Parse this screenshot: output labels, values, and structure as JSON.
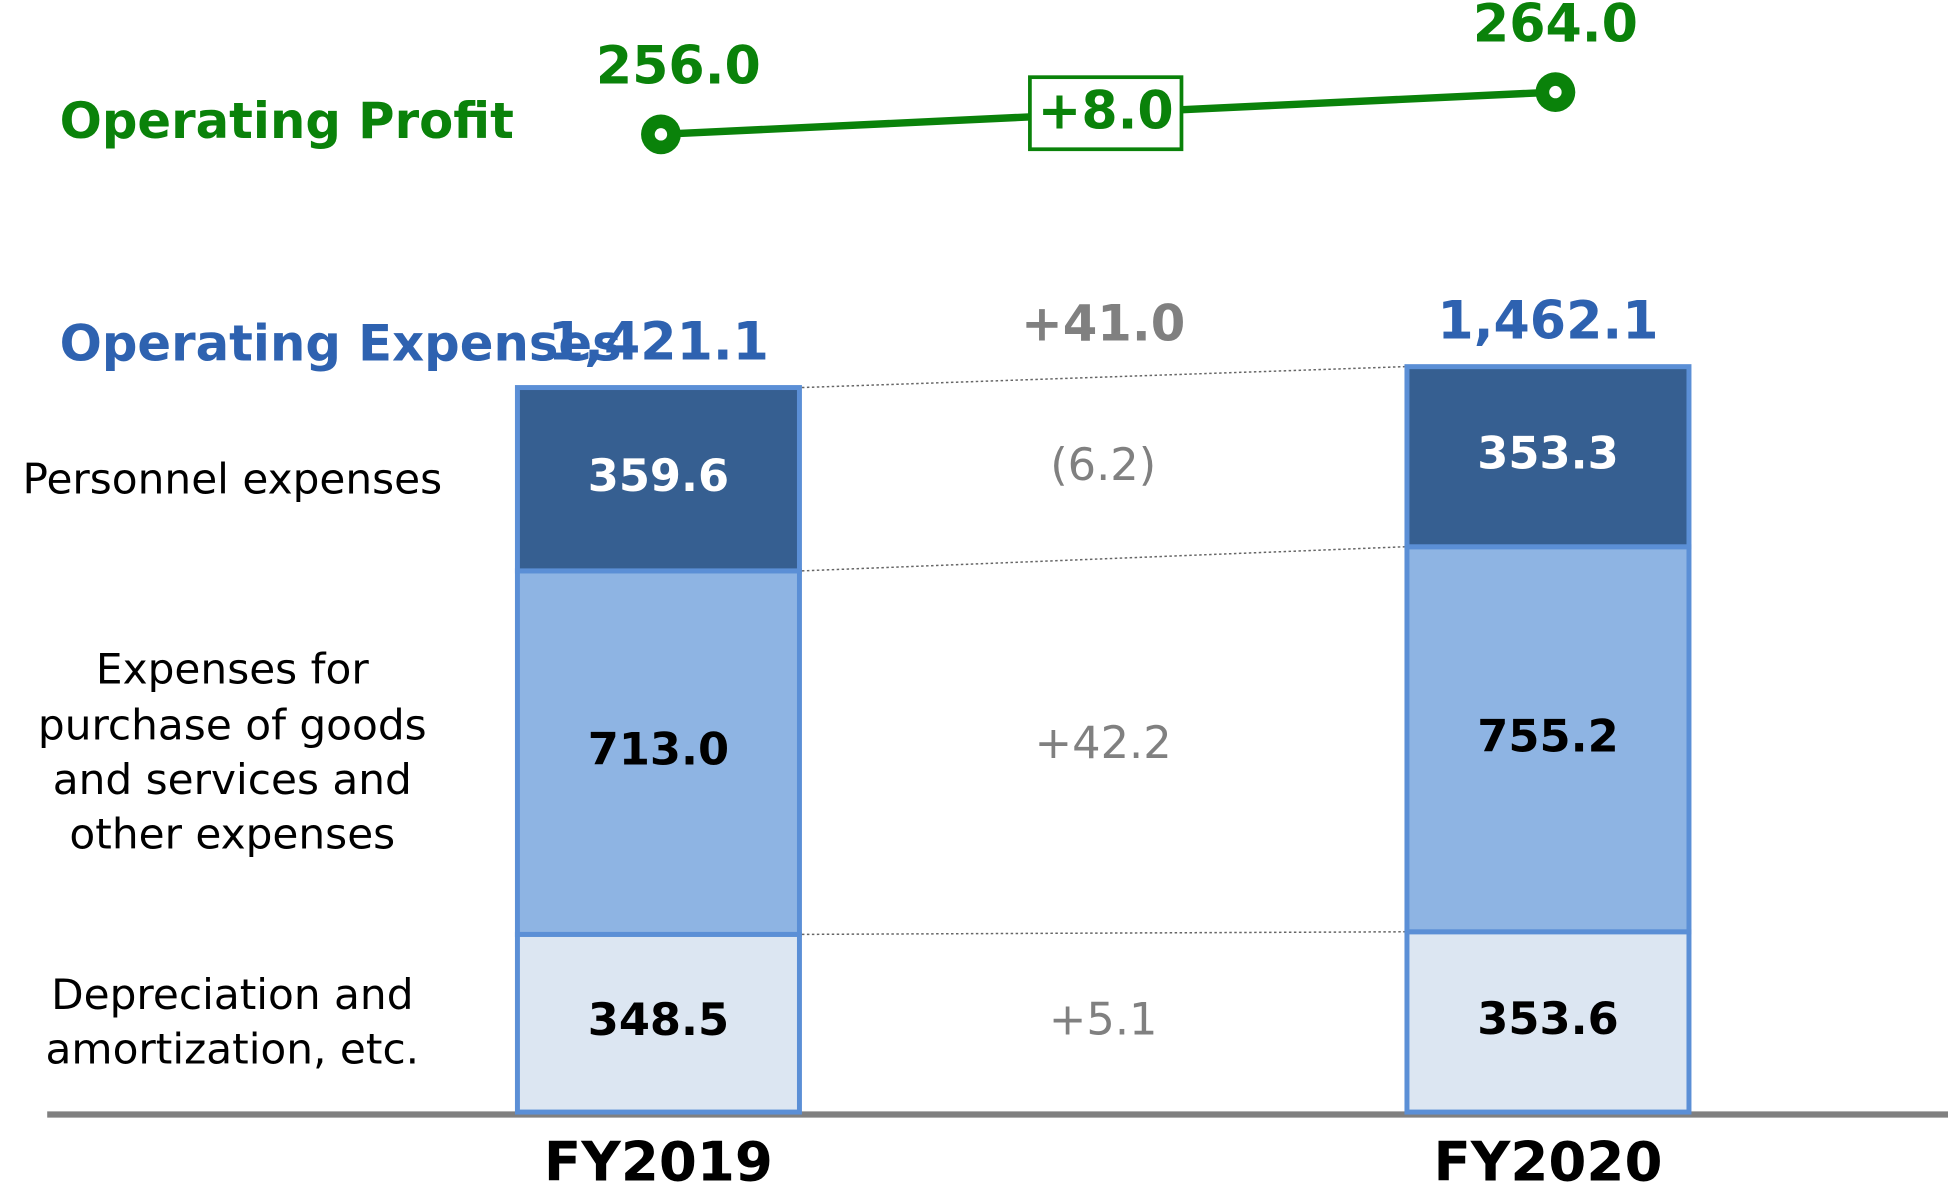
{
  "chart_data": {
    "type": "stacked_bar",
    "categories": [
      "FY2019",
      "FY2020"
    ],
    "series": [
      {
        "name": "Depreciation and amortization, etc.",
        "color": "#dce6f2",
        "text_color": "#000000",
        "values": [
          348.5,
          353.6
        ],
        "value_labels": [
          "348.5",
          "353.6"
        ],
        "change": 5.1,
        "change_label": "+5.1"
      },
      {
        "name": "Expenses for purchase of goods and services and other expenses",
        "color": "#8eb4e3",
        "text_color": "#000000",
        "values": [
          713.0,
          755.2
        ],
        "value_labels": [
          "713.0",
          "755.2"
        ],
        "change": 42.2,
        "change_label": "+42.2"
      },
      {
        "name": "Personnel expenses",
        "color": "#365f91",
        "text_color": "#ffffff",
        "values": [
          359.6,
          353.3
        ],
        "value_labels": [
          "359.6",
          "353.3"
        ],
        "change": -6.2,
        "change_label": "(6.2)"
      }
    ],
    "total": {
      "name": "Operating Expenses",
      "color": "#2e62b0",
      "values": [
        1421.1,
        1462.1
      ],
      "value_labels": [
        "1,421.1",
        "1,462.1"
      ],
      "change": 41.0,
      "change_label": "+41.0"
    },
    "profit": {
      "name": "Operating Profit",
      "color": "#0a820a",
      "values": [
        256.0,
        264.0
      ],
      "value_labels": [
        "256.0",
        "264.0"
      ],
      "change": 8.0,
      "change_label": "+8.0"
    }
  }
}
